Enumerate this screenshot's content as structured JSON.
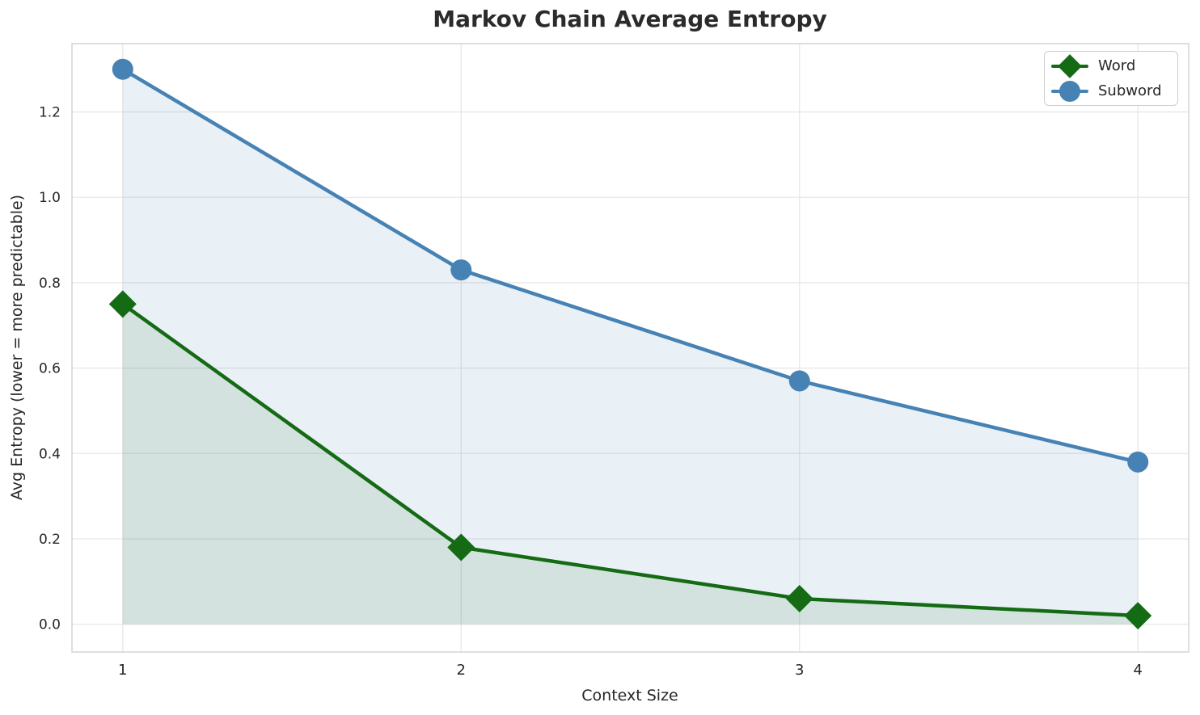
{
  "page": {
    "background": "#ffffff"
  },
  "chart_data": {
    "type": "line",
    "title": "Markov Chain Average Entropy",
    "xlabel": "Context Size",
    "ylabel": "Avg Entropy (lower = more predictable)",
    "x": [
      1,
      2,
      3,
      4
    ],
    "series": [
      {
        "name": "Word",
        "color": "#146b14",
        "marker": "diamond",
        "fill_color": "rgba(20,107,20,0.10)",
        "values": [
          0.75,
          0.18,
          0.06,
          0.02
        ]
      },
      {
        "name": "Subword",
        "color": "#4682b4",
        "marker": "circle",
        "fill_color": "rgba(70,130,180,0.12)",
        "values": [
          1.3,
          0.83,
          0.57,
          0.38
        ]
      }
    ],
    "x_ticks": [
      1,
      2,
      3,
      4
    ],
    "y_ticks": [
      0.0,
      0.2,
      0.4,
      0.6,
      0.8,
      1.0,
      1.2
    ],
    "xlim": [
      0.85,
      4.15
    ],
    "ylim": [
      -0.065,
      1.36
    ],
    "grid": true,
    "fill_to_zero": true,
    "legend_position": "upper right"
  },
  "style": {
    "grid_color": "#e7e7e7",
    "spine_color": "#d4d4d4",
    "text_color": "#262626",
    "title_color": "#2b2b2b",
    "tick_font_size": 17,
    "line_width": 4.5,
    "circle_radius": 13,
    "diamond_half_diagonal": 17
  }
}
